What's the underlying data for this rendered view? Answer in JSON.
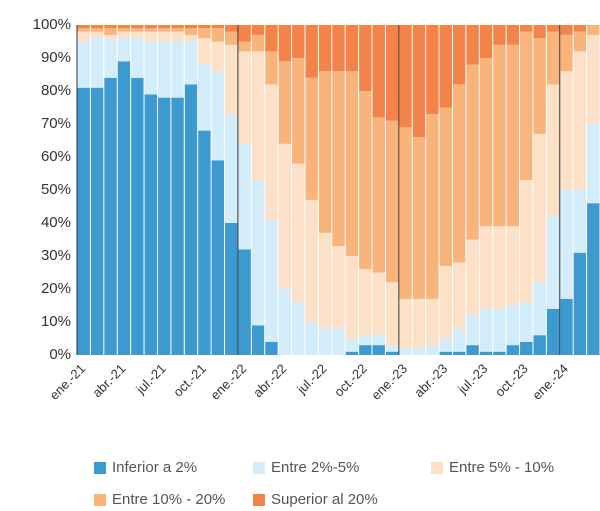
{
  "chart_data": {
    "type": "stacked_bar_100",
    "categories": [
      "ene.-21",
      null,
      null,
      "abr.-21",
      null,
      null,
      "jul.-21",
      null,
      null,
      "oct.-21",
      null,
      null,
      "ene.-22",
      null,
      null,
      "abr.-22",
      null,
      null,
      "jul.-22",
      null,
      null,
      "oct.-22",
      null,
      null,
      "ene.-23",
      null,
      null,
      "abr.-23",
      null,
      null,
      "jul.-23",
      null,
      null,
      "oct.-23",
      null,
      null,
      "ene.-24",
      null,
      null
    ],
    "series": [
      {
        "name": "Inferior a 2%",
        "color": "#3d9ad1",
        "values": [
          81,
          81,
          84,
          89,
          84,
          79,
          78,
          78,
          82,
          68,
          59,
          40,
          32,
          9,
          4,
          0,
          0,
          0,
          0,
          0,
          1,
          3,
          3,
          1,
          0,
          0,
          0,
          1,
          1,
          3,
          1,
          1,
          3,
          4,
          6,
          14,
          17,
          31,
          46
        ]
      },
      {
        "name": "Entre 2%-5%",
        "color": "#d4edfb",
        "values": [
          14,
          15,
          12,
          7,
          12,
          16,
          17,
          17,
          13,
          20,
          27,
          33,
          32,
          44,
          37,
          20,
          16,
          10,
          8,
          8,
          4,
          3,
          3,
          2,
          2,
          2,
          3,
          4,
          7,
          9,
          13,
          13,
          12,
          12,
          16,
          28,
          33,
          19,
          24
        ]
      },
      {
        "name": "Entre 5% - 10%",
        "color": "#fce0c8",
        "values": [
          3,
          2,
          1,
          2,
          2,
          3,
          3,
          3,
          2,
          8,
          9,
          21,
          28,
          39,
          41,
          44,
          42,
          37,
          29,
          25,
          25,
          20,
          19,
          19,
          15,
          15,
          14,
          22,
          20,
          23,
          25,
          25,
          24,
          37,
          45,
          40,
          36,
          42,
          27
        ]
      },
      {
        "name": "Entre 10% - 20%",
        "color": "#f9b47c",
        "values": [
          1,
          1,
          2,
          1,
          1,
          1,
          1,
          1,
          2,
          3,
          4,
          4,
          3,
          5,
          10,
          25,
          32,
          37,
          49,
          53,
          56,
          54,
          47,
          49,
          52,
          49,
          56,
          48,
          54,
          53,
          51,
          55,
          55,
          45,
          29,
          16,
          11,
          6,
          3
        ]
      },
      {
        "name": "Superior al 20%",
        "color": "#f4834a",
        "values": [
          1,
          1,
          1,
          1,
          1,
          1,
          1,
          1,
          1,
          1,
          1,
          2,
          5,
          3,
          8,
          11,
          10,
          16,
          14,
          14,
          14,
          20,
          28,
          29,
          31,
          34,
          27,
          25,
          18,
          12,
          10,
          6,
          6,
          2,
          4,
          2,
          3,
          2,
          0
        ]
      }
    ],
    "ylim": [
      0,
      100
    ],
    "yticks": [
      {
        "value": 0,
        "label": "0%"
      },
      {
        "value": 10,
        "label": "10%"
      },
      {
        "value": 20,
        "label": "20%"
      },
      {
        "value": 30,
        "label": "30%"
      },
      {
        "value": 40,
        "label": "40%"
      },
      {
        "value": 50,
        "label": "50%"
      },
      {
        "value": 60,
        "label": "60%"
      },
      {
        "value": 70,
        "label": "70%"
      },
      {
        "value": 80,
        "label": "80%"
      },
      {
        "value": 90,
        "label": "90%"
      },
      {
        "value": 100,
        "label": "100%"
      }
    ],
    "legend": "bottom"
  }
}
